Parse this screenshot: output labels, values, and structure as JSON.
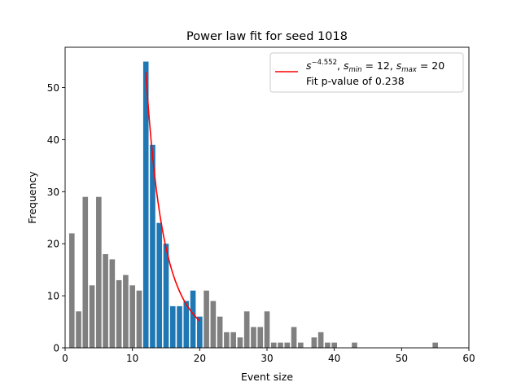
{
  "chart_data": {
    "type": "bar",
    "title": "Power law fit for seed 1018",
    "xlabel": "Event size",
    "ylabel": "Frequency",
    "xlim": [
      0,
      60
    ],
    "ylim": [
      0,
      57.75
    ],
    "xticks": [
      0,
      10,
      20,
      30,
      40,
      50,
      60
    ],
    "yticks": [
      0,
      10,
      20,
      30,
      40,
      50
    ],
    "grid": false,
    "legend_position": "top-right",
    "colors": {
      "background_bars": "#808080",
      "fit_range_bars": "#1f77b4",
      "fit_line": "#ff0000"
    },
    "series": [
      {
        "role": "outside-fit-range",
        "x": [
          1,
          2,
          3,
          4,
          5,
          6,
          7,
          8,
          9,
          10,
          11,
          21,
          22,
          23,
          24,
          25,
          26,
          27,
          28,
          29,
          30,
          31,
          32,
          33,
          34,
          35,
          37,
          38,
          39,
          40,
          43,
          55
        ],
        "values": [
          22,
          7,
          29,
          12,
          29,
          18,
          17,
          13,
          14,
          12,
          11,
          11,
          9,
          6,
          3,
          3,
          2,
          7,
          4,
          4,
          7,
          1,
          1,
          1,
          4,
          1,
          2,
          3,
          1,
          1,
          1,
          1
        ]
      },
      {
        "role": "fit-range",
        "x": [
          12,
          13,
          14,
          15,
          16,
          17,
          18,
          19,
          20
        ],
        "values": [
          55,
          39,
          24,
          20,
          8,
          8,
          9,
          11,
          6
        ]
      }
    ],
    "fit": {
      "exponent": -4.552,
      "s_min": 12,
      "s_max": 20,
      "p_value": 0.238,
      "normalization_at_s_min": 53
    },
    "legend": {
      "fit_label_base": "s",
      "fit_label_exponent": "−4.552",
      "fit_label_smin_var": "s",
      "fit_label_smin_sub": "min",
      "fit_label_smin_val": "= 12,",
      "fit_label_smax_var": "s",
      "fit_label_smax_sub": "max",
      "fit_label_smax_val": "= 20",
      "pvalue_text": "Fit p-value of 0.238"
    }
  }
}
